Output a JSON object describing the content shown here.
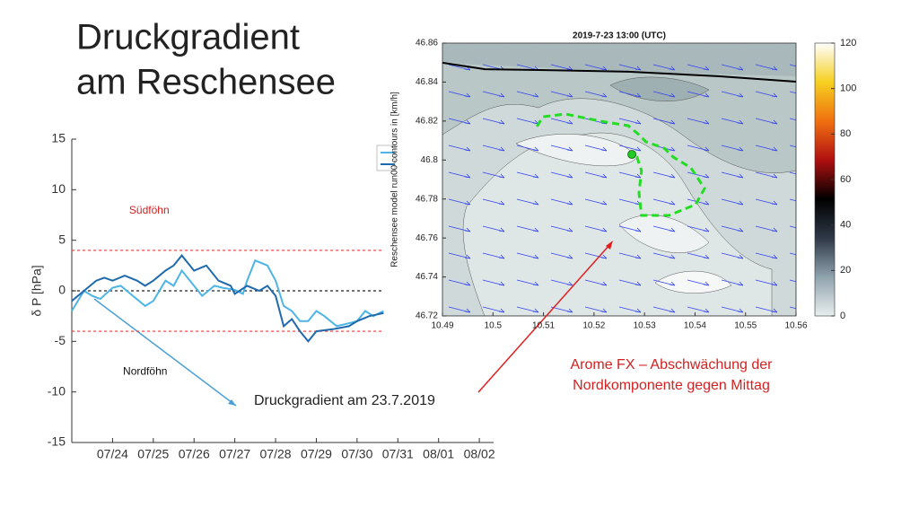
{
  "slide": {
    "title_lines": [
      "Druckgradient",
      "am Reschensee"
    ],
    "caption": "Druckgradient am 23.7.2019",
    "note_lines": [
      "Arome FX – Abschwächung der",
      "Nordkomponente gegen Mittag"
    ]
  },
  "chart_data": [
    {
      "type": "line",
      "ylabel": "δ P [hPa]",
      "xlim": [
        23,
        33.35
      ],
      "xticks": [
        {
          "value": 24,
          "label": "07/24"
        },
        {
          "value": 25,
          "label": "07/25"
        },
        {
          "value": 26,
          "label": "07/26"
        },
        {
          "value": 27,
          "label": "07/27"
        },
        {
          "value": 28,
          "label": "07/28"
        },
        {
          "value": 29,
          "label": "07/29"
        },
        {
          "value": 30,
          "label": "07/30"
        },
        {
          "value": 31,
          "label": "07/31"
        },
        {
          "value": 32,
          "label": "08/01"
        },
        {
          "value": 33,
          "label": "08/02"
        }
      ],
      "ylim": [
        -15,
        15
      ],
      "yticks": [
        15,
        10,
        5,
        0,
        -5,
        -10,
        -15
      ],
      "hlines": [
        {
          "value": 4,
          "color": "#e03c3c"
        },
        {
          "value": 0,
          "color": "#222222"
        },
        {
          "value": -4,
          "color": "#e03c3c"
        }
      ],
      "annotations": [
        {
          "text": "Südföhn",
          "x": 24.9,
          "y": 7.9,
          "color": "#d62020"
        },
        {
          "text": "Nordföhn",
          "x": 24.8,
          "y": -8,
          "color": "#111111"
        }
      ],
      "series": [
        {
          "color": "#4db4e6",
          "x": [
            23.0,
            23.3,
            23.5,
            23.7,
            24.0,
            24.2,
            24.5,
            24.8,
            25.0,
            25.3,
            25.5,
            25.7,
            26.0,
            26.2,
            26.5,
            26.7,
            27.0,
            27.2,
            27.3,
            27.5,
            27.8,
            28.0,
            28.2,
            28.4,
            28.6,
            28.8,
            29.0,
            29.2,
            29.5,
            29.7,
            30.0,
            30.2,
            30.4,
            30.65
          ],
          "values": [
            -2,
            0,
            -0.5,
            -0.8,
            0.3,
            0.5,
            -0.5,
            -1.5,
            -1,
            1,
            0.5,
            2,
            0.5,
            -0.5,
            0.5,
            0.3,
            0.1,
            -0.3,
            1,
            3,
            2.5,
            1,
            -1.5,
            -2,
            -3,
            -3,
            -2,
            -2.5,
            -3.5,
            -3.3,
            -3,
            -2,
            -2.5,
            -2
          ]
        },
        {
          "color": "#1f6aad",
          "x": [
            23.0,
            23.3,
            23.6,
            23.8,
            24.0,
            24.3,
            24.6,
            24.8,
            25.0,
            25.3,
            25.5,
            25.7,
            26.0,
            26.3,
            26.6,
            26.9,
            27.0,
            27.3,
            27.6,
            27.8,
            28.0,
            28.2,
            28.4,
            28.6,
            28.8,
            29.0,
            29.4,
            29.8,
            30.0,
            30.3,
            30.65
          ],
          "values": [
            -1,
            0,
            1,
            1.3,
            1,
            1.5,
            1,
            0.5,
            1,
            2,
            2.5,
            3.5,
            2,
            2.5,
            1,
            0.5,
            -0.3,
            0.5,
            0,
            0.5,
            -0.5,
            -3.5,
            -2.8,
            -4,
            -5,
            -4,
            -3.8,
            -3.5,
            -3,
            -2.5,
            -2.2
          ]
        }
      ]
    },
    {
      "type": "contour",
      "title": "2019-7-23  13:00 (UTC)",
      "ylabel": "Reschensee model run00  contours in [km/h]",
      "xlim": [
        10.49,
        10.56
      ],
      "xticks": [
        10.49,
        10.5,
        10.51,
        10.52,
        10.53,
        10.54,
        10.55,
        10.56
      ],
      "ylim": [
        46.72,
        46.86
      ],
      "yticks": [
        46.72,
        46.74,
        46.76,
        46.78,
        46.8,
        46.82,
        46.84,
        46.86
      ],
      "colorbar": {
        "lim": [
          0,
          120
        ],
        "ticks": [
          0,
          20,
          40,
          60,
          80,
          100,
          120
        ],
        "colors": [
          "#e8eeee",
          "#8fa3ad",
          "#2e3847",
          "#000000",
          "#b01010",
          "#f07010",
          "#f5d020",
          "#ffffff"
        ]
      },
      "series": [
        {
          "color": "#000000",
          "style": "solid",
          "x": [
            10.49,
            10.4984,
            10.509,
            10.5268,
            10.5445,
            10.56
          ],
          "values": [
            46.8499,
            46.8466,
            46.8462,
            46.8453,
            46.843,
            46.8402
          ]
        },
        {
          "color": "#22dd22",
          "style": "dashed",
          "x": [
            10.5087,
            10.5099,
            10.5143,
            10.5214,
            10.5268,
            10.5289,
            10.5303,
            10.5339,
            10.5357,
            10.5392,
            10.5419,
            10.5401,
            10.5348,
            10.5294,
            10.5289,
            10.5294,
            10.5285,
            10.5271
          ],
          "values": [
            46.8172,
            46.8222,
            46.8236,
            46.8199,
            46.8176,
            46.813,
            46.8093,
            46.8061,
            46.8015,
            46.796,
            46.7854,
            46.7771,
            46.7716,
            46.7716,
            46.7831,
            46.7946,
            46.8015,
            46.8038
          ]
        },
        {
          "color": "#22cc22",
          "style": "marker",
          "x": [
            10.5275
          ],
          "values": [
            46.8029
          ]
        }
      ]
    }
  ]
}
